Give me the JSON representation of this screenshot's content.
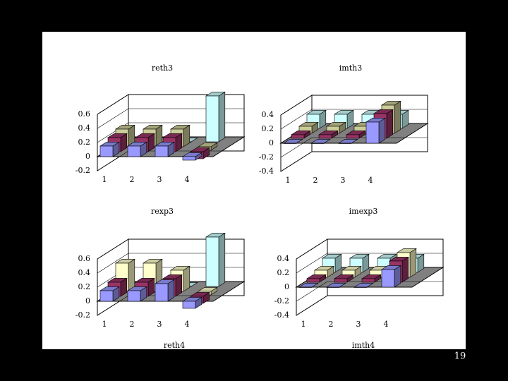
{
  "chart_data": [
    {
      "type": "bar3d",
      "title": "reth3",
      "categories": [
        "1",
        "2",
        "3",
        "4"
      ],
      "series": [
        {
          "color": "#9999ff",
          "values": [
            0.15,
            0.15,
            0.15,
            -0.05
          ]
        },
        {
          "color": "#993366",
          "values": [
            0.2,
            0.2,
            0.2,
            -0.1
          ]
        },
        {
          "color": "#cccc99",
          "values": [
            0.25,
            0.25,
            0.25,
            -0.05
          ]
        },
        {
          "color": "#ccffff",
          "values": [
            0,
            0,
            0,
            0.65
          ]
        }
      ],
      "ylim": [
        -0.2,
        0.6
      ],
      "yticks": [
        -0.2,
        0,
        0.2,
        0.4,
        0.6
      ],
      "grid": true
    },
    {
      "type": "bar3d",
      "title": "imth3",
      "categories": [
        "1",
        "2",
        "3",
        "4"
      ],
      "series": [
        {
          "color": "#9999ff",
          "values": [
            0,
            0,
            0,
            0.3
          ]
        },
        {
          "color": "#993366",
          "values": [
            0.05,
            0.05,
            0.05,
            0.35
          ]
        },
        {
          "color": "#cccc99",
          "values": [
            0.1,
            0.1,
            0.1,
            0.4
          ]
        },
        {
          "color": "#ccffff",
          "values": [
            0.2,
            0.2,
            0.2,
            0.2
          ]
        }
      ],
      "ylim": [
        -0.4,
        0.4
      ],
      "yticks": [
        -0.4,
        -0.2,
        0,
        0.2,
        0.4
      ],
      "grid": true
    },
    {
      "type": "bar3d",
      "title": "rexp3",
      "categories": [
        "1",
        "2",
        "3",
        "4"
      ],
      "series": [
        {
          "color": "#9999ff",
          "values": [
            0.15,
            0.15,
            0.25,
            -0.1
          ]
        },
        {
          "color": "#993366",
          "values": [
            0.2,
            0.2,
            0.25,
            -0.1
          ]
        },
        {
          "color": "#ffffcc",
          "values": [
            0.4,
            0.4,
            0.3,
            -0.05
          ]
        },
        {
          "color": "#ccffff",
          "values": [
            0,
            0,
            0,
            0.7
          ]
        }
      ],
      "ylim": [
        -0.2,
        0.6
      ],
      "yticks": [
        -0.2,
        0,
        0.2,
        0.4,
        0.6
      ],
      "grid": true
    },
    {
      "type": "bar3d",
      "title": "imexp3",
      "categories": [
        "1",
        "2",
        "3",
        "4"
      ],
      "series": [
        {
          "color": "#9999ff",
          "values": [
            0,
            0,
            0,
            0.25
          ]
        },
        {
          "color": "#993366",
          "values": [
            0.05,
            0.05,
            0.05,
            0.3
          ]
        },
        {
          "color": "#ffffcc",
          "values": [
            0.1,
            0.1,
            0.1,
            0.35
          ]
        },
        {
          "color": "#ccffff",
          "values": [
            0.2,
            0.2,
            0.2,
            0.2
          ]
        }
      ],
      "ylim": [
        -0.4,
        0.4
      ],
      "yticks": [
        -0.4,
        -0.2,
        0,
        0.2,
        0.4
      ],
      "grid": true
    }
  ],
  "cut_labels": [
    "reth4",
    "imth4"
  ],
  "page_number": "19"
}
